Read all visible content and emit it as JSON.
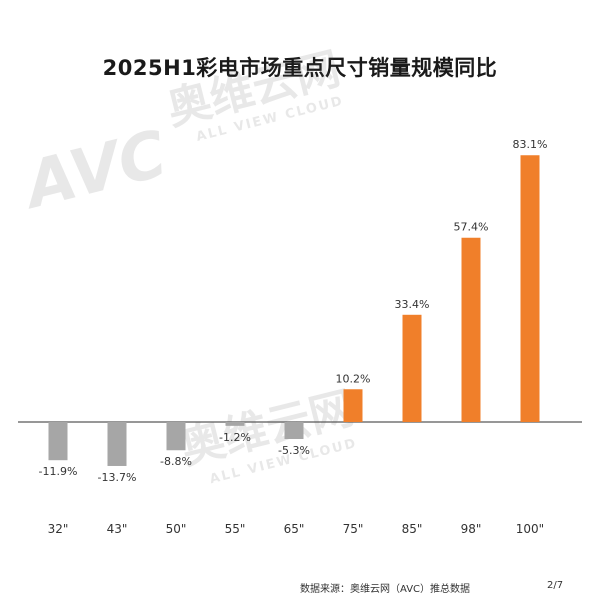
{
  "chart_data": {
    "type": "bar",
    "title": "2025H1彩电市场重点尺寸销量规模同比",
    "xlabel": "",
    "ylabel": "",
    "categories": [
      "32\"",
      "43\"",
      "50\"",
      "55\"",
      "65\"",
      "75\"",
      "85\"",
      "98\"",
      "100\""
    ],
    "values": [
      -11.9,
      -13.7,
      -8.8,
      -1.2,
      -5.3,
      10.2,
      33.4,
      57.4,
      83.1
    ],
    "value_labels": [
      "-11.9%",
      "-13.7%",
      "-8.8%",
      "-1.2%",
      "-5.3%",
      "10.2%",
      "33.4%",
      "57.4%",
      "83.1%"
    ],
    "ylim": [
      -18,
      90
    ],
    "grid": false,
    "legend": "none",
    "colors": {
      "negative": "#a6a6a6",
      "positive": "#f07f2a",
      "baseline": "#595959"
    }
  },
  "watermark": {
    "logo": "AVC",
    "cn": "奥维云网",
    "en": "ALL VIEW CLOUD"
  },
  "footer": {
    "source": "数据来源：奥维云网（AVC）推总数据",
    "page": "2/7"
  }
}
